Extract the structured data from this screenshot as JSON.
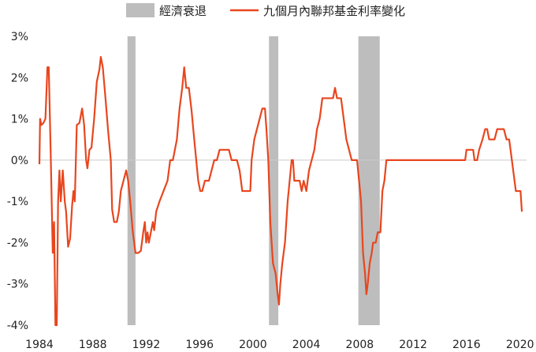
{
  "chart_data": {
    "type": "line",
    "legend": {
      "recession_label": "經濟衰退",
      "line_label": "九個月內聯邦基金利率變化",
      "placement": "top-center"
    },
    "colors": {
      "line": "#e8461e",
      "recession": "#bdbdbd",
      "zero_line": "#cccccc"
    },
    "xlim": [
      1984,
      2020.5
    ],
    "ylim": [
      -4,
      3
    ],
    "x_ticks": [
      {
        "value": 1984,
        "label": "1984"
      },
      {
        "value": 1988,
        "label": "1988"
      },
      {
        "value": 1992,
        "label": "1992"
      },
      {
        "value": 1996,
        "label": "1996"
      },
      {
        "value": 2000,
        "label": "2000"
      },
      {
        "value": 2004,
        "label": "2004"
      },
      {
        "value": 2008,
        "label": "2008"
      },
      {
        "value": 2012,
        "label": "2012"
      },
      {
        "value": 2016,
        "label": "2016"
      },
      {
        "value": 2020,
        "label": "2020"
      }
    ],
    "y_ticks": [
      {
        "value": 3,
        "label": "3%"
      },
      {
        "value": 2,
        "label": "2%"
      },
      {
        "value": 1,
        "label": "1%"
      },
      {
        "value": 0,
        "label": "0%"
      },
      {
        "value": -1,
        "label": "-1%"
      },
      {
        "value": -2,
        "label": "-2%"
      },
      {
        "value": -3,
        "label": "-3%"
      },
      {
        "value": -4,
        "label": "-4%"
      }
    ],
    "recessions": [
      {
        "start": 1990.6,
        "end": 1991.2
      },
      {
        "start": 2001.2,
        "end": 2001.9
      },
      {
        "start": 2007.9,
        "end": 2009.5
      }
    ],
    "series": [
      {
        "points": [
          [
            1984.0,
            -0.1
          ],
          [
            1984.05,
            1.0
          ],
          [
            1984.15,
            0.85
          ],
          [
            1984.3,
            0.9
          ],
          [
            1984.45,
            1.0
          ],
          [
            1984.6,
            2.25
          ],
          [
            1984.7,
            2.25
          ],
          [
            1984.85,
            0.1
          ],
          [
            1985.0,
            -2.25
          ],
          [
            1985.1,
            -1.5
          ],
          [
            1985.2,
            -4.0
          ],
          [
            1985.3,
            -4.0
          ],
          [
            1985.4,
            -1.0
          ],
          [
            1985.5,
            -0.25
          ],
          [
            1985.6,
            -1.0
          ],
          [
            1985.75,
            -0.25
          ],
          [
            1985.9,
            -1.0
          ],
          [
            1986.0,
            -1.25
          ],
          [
            1986.15,
            -2.1
          ],
          [
            1986.3,
            -1.9
          ],
          [
            1986.45,
            -1.1
          ],
          [
            1986.55,
            -0.75
          ],
          [
            1986.65,
            -1.0
          ],
          [
            1986.8,
            0.85
          ],
          [
            1987.0,
            0.9
          ],
          [
            1987.2,
            1.25
          ],
          [
            1987.35,
            0.85
          ],
          [
            1987.5,
            0.0
          ],
          [
            1987.6,
            -0.2
          ],
          [
            1987.75,
            0.25
          ],
          [
            1987.9,
            0.3
          ],
          [
            1988.1,
            1.0
          ],
          [
            1988.3,
            1.9
          ],
          [
            1988.5,
            2.2
          ],
          [
            1988.6,
            2.5
          ],
          [
            1988.75,
            2.25
          ],
          [
            1988.95,
            1.5
          ],
          [
            1989.15,
            0.7
          ],
          [
            1989.35,
            0.0
          ],
          [
            1989.45,
            -1.2
          ],
          [
            1989.6,
            -1.5
          ],
          [
            1989.8,
            -1.5
          ],
          [
            1989.95,
            -1.25
          ],
          [
            1990.1,
            -0.75
          ],
          [
            1990.3,
            -0.5
          ],
          [
            1990.5,
            -0.25
          ],
          [
            1990.65,
            -0.5
          ],
          [
            1990.8,
            -1.0
          ],
          [
            1991.0,
            -1.75
          ],
          [
            1991.2,
            -2.25
          ],
          [
            1991.4,
            -2.25
          ],
          [
            1991.6,
            -2.2
          ],
          [
            1991.8,
            -1.7
          ],
          [
            1991.9,
            -1.5
          ],
          [
            1992.0,
            -2.0
          ],
          [
            1992.1,
            -1.75
          ],
          [
            1992.2,
            -2.0
          ],
          [
            1992.35,
            -1.75
          ],
          [
            1992.5,
            -1.5
          ],
          [
            1992.6,
            -1.7
          ],
          [
            1992.75,
            -1.25
          ],
          [
            1993.0,
            -1.0
          ],
          [
            1993.3,
            -0.75
          ],
          [
            1993.6,
            -0.5
          ],
          [
            1993.8,
            0.0
          ],
          [
            1994.0,
            0.0
          ],
          [
            1994.15,
            0.25
          ],
          [
            1994.3,
            0.5
          ],
          [
            1994.5,
            1.25
          ],
          [
            1994.7,
            1.75
          ],
          [
            1994.85,
            2.25
          ],
          [
            1995.0,
            1.75
          ],
          [
            1995.2,
            1.75
          ],
          [
            1995.4,
            1.2
          ],
          [
            1995.6,
            0.5
          ],
          [
            1995.75,
            0.0
          ],
          [
            1995.9,
            -0.5
          ],
          [
            1996.05,
            -0.75
          ],
          [
            1996.2,
            -0.75
          ],
          [
            1996.4,
            -0.5
          ],
          [
            1996.7,
            -0.5
          ],
          [
            1996.9,
            -0.25
          ],
          [
            1997.1,
            0.0
          ],
          [
            1997.3,
            0.0
          ],
          [
            1997.5,
            0.25
          ],
          [
            1997.8,
            0.25
          ],
          [
            1998.2,
            0.25
          ],
          [
            1998.4,
            0.0
          ],
          [
            1998.8,
            0.0
          ],
          [
            1999.0,
            -0.25
          ],
          [
            1999.2,
            -0.75
          ],
          [
            1999.5,
            -0.75
          ],
          [
            1999.8,
            -0.75
          ],
          [
            1999.9,
            0.0
          ],
          [
            2000.1,
            0.5
          ],
          [
            2000.3,
            0.75
          ],
          [
            2000.5,
            1.0
          ],
          [
            2000.7,
            1.25
          ],
          [
            2000.9,
            1.25
          ],
          [
            2001.0,
            0.8
          ],
          [
            2001.15,
            0.0
          ],
          [
            2001.3,
            -1.5
          ],
          [
            2001.5,
            -2.5
          ],
          [
            2001.7,
            -2.75
          ],
          [
            2001.85,
            -3.25
          ],
          [
            2001.95,
            -3.5
          ],
          [
            2002.05,
            -3.0
          ],
          [
            2002.2,
            -2.5
          ],
          [
            2002.4,
            -2.0
          ],
          [
            2002.6,
            -1.0
          ],
          [
            2002.75,
            -0.5
          ],
          [
            2002.9,
            0.0
          ],
          [
            2003.0,
            0.0
          ],
          [
            2003.1,
            -0.5
          ],
          [
            2003.3,
            -0.5
          ],
          [
            2003.5,
            -0.5
          ],
          [
            2003.65,
            -0.75
          ],
          [
            2003.8,
            -0.5
          ],
          [
            2004.0,
            -0.75
          ],
          [
            2004.2,
            -0.25
          ],
          [
            2004.4,
            0.0
          ],
          [
            2004.6,
            0.25
          ],
          [
            2004.8,
            0.75
          ],
          [
            2005.0,
            1.0
          ],
          [
            2005.2,
            1.5
          ],
          [
            2005.5,
            1.5
          ],
          [
            2005.8,
            1.5
          ],
          [
            2006.0,
            1.5
          ],
          [
            2006.15,
            1.75
          ],
          [
            2006.3,
            1.5
          ],
          [
            2006.6,
            1.5
          ],
          [
            2006.8,
            1.0
          ],
          [
            2007.0,
            0.5
          ],
          [
            2007.2,
            0.25
          ],
          [
            2007.4,
            0.0
          ],
          [
            2007.6,
            0.0
          ],
          [
            2007.8,
            0.0
          ],
          [
            2007.95,
            -0.5
          ],
          [
            2008.1,
            -1.0
          ],
          [
            2008.25,
            -2.25
          ],
          [
            2008.4,
            -2.75
          ],
          [
            2008.5,
            -3.25
          ],
          [
            2008.6,
            -3.0
          ],
          [
            2008.75,
            -2.5
          ],
          [
            2008.9,
            -2.25
          ],
          [
            2009.0,
            -2.0
          ],
          [
            2009.2,
            -2.0
          ],
          [
            2009.35,
            -1.75
          ],
          [
            2009.55,
            -1.75
          ],
          [
            2009.7,
            -0.75
          ],
          [
            2009.85,
            -0.5
          ],
          [
            2010.0,
            0.0
          ],
          [
            2015.9,
            0.0
          ],
          [
            2016.0,
            0.25
          ],
          [
            2016.5,
            0.25
          ],
          [
            2016.6,
            0.0
          ],
          [
            2016.8,
            0.0
          ],
          [
            2016.95,
            0.25
          ],
          [
            2017.2,
            0.5
          ],
          [
            2017.4,
            0.75
          ],
          [
            2017.55,
            0.75
          ],
          [
            2017.7,
            0.5
          ],
          [
            2018.1,
            0.5
          ],
          [
            2018.3,
            0.75
          ],
          [
            2018.8,
            0.75
          ],
          [
            2019.0,
            0.5
          ],
          [
            2019.2,
            0.5
          ],
          [
            2019.4,
            0.0
          ],
          [
            2019.6,
            -0.5
          ],
          [
            2019.7,
            -0.75
          ],
          [
            2019.8,
            -0.75
          ],
          [
            2020.05,
            -0.75
          ],
          [
            2020.15,
            -1.25
          ]
        ]
      }
    ]
  }
}
